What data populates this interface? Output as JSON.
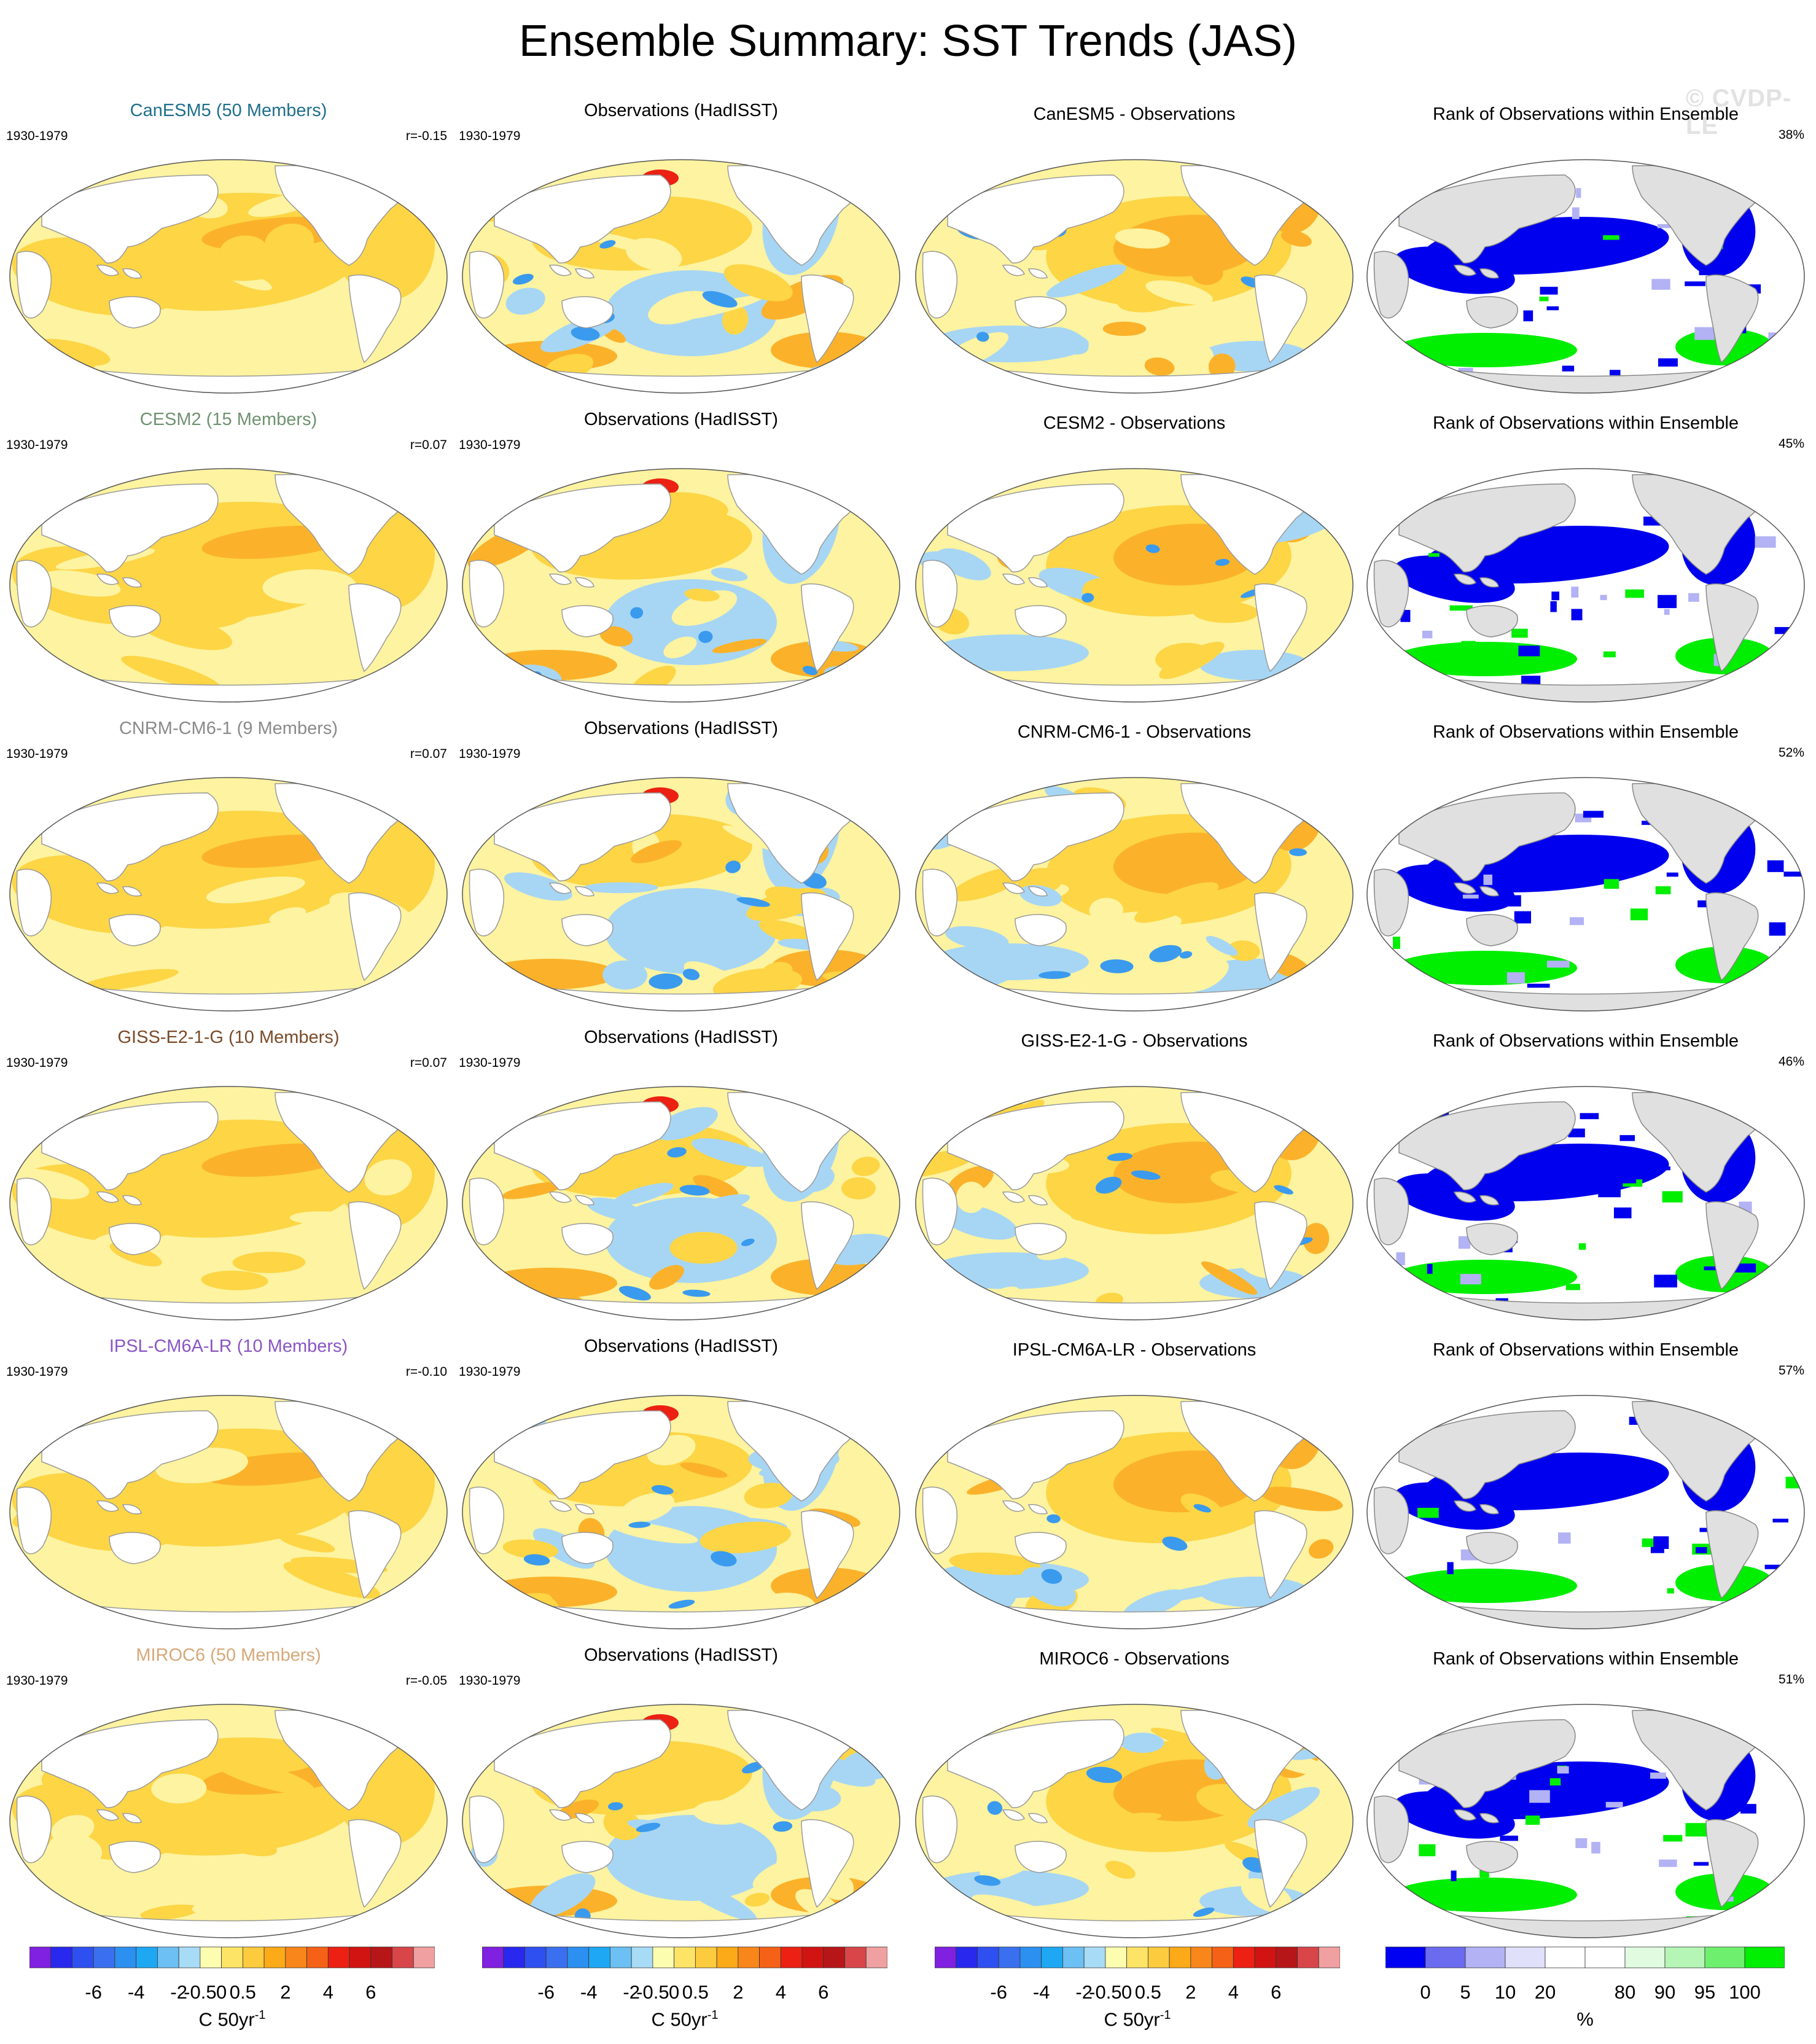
{
  "title": "Ensemble Summary: SST Trends (JAS)",
  "watermark": "© CVDP-LE",
  "period": "1930-1979",
  "obs_title": "Observations (HadISST)",
  "rank_title": "Rank of Observations within Ensemble",
  "rows": [
    {
      "model_title": "CanESM5 (50 Members)",
      "model_color": "#1f6f8b",
      "r": "r=-0.15",
      "diff_title": "CanESM5 - Observations",
      "rank_pct": "38%"
    },
    {
      "model_title": "CESM2 (15 Members)",
      "model_color": "#6f9270",
      "r": "r=0.07",
      "diff_title": "CESM2 - Observations",
      "rank_pct": "45%"
    },
    {
      "model_title": "CNRM-CM6-1 (9 Members)",
      "model_color": "#8a8a8a",
      "r": "r=0.07",
      "diff_title": "CNRM-CM6-1 - Observations",
      "rank_pct": "52%"
    },
    {
      "model_title": "GISS-E2-1-G (10 Members)",
      "model_color": "#7a4a28",
      "r": "r=0.07",
      "diff_title": "GISS-E2-1-G - Observations",
      "rank_pct": "46%"
    },
    {
      "model_title": "IPSL-CM6A-LR (10 Members)",
      "model_color": "#8a55c4",
      "r": "r=-0.10",
      "diff_title": "IPSL-CM6A-LR - Observations",
      "rank_pct": "57%"
    },
    {
      "model_title": "MIROC6 (50 Members)",
      "model_color": "#d6a879",
      "r": "r=-0.05",
      "diff_title": "MIROC6 - Observations",
      "rank_pct": "51%"
    }
  ],
  "sst_colorbar": {
    "colors": [
      "#8020e0",
      "#2828ee",
      "#2f50f0",
      "#3a70ef",
      "#2c90f0",
      "#1ea8f4",
      "#6cc0f3",
      "#a8dbf5",
      "#fdfdb0",
      "#fde467",
      "#fdcb3e",
      "#fdaa18",
      "#f9861a",
      "#f56116",
      "#ec2013",
      "#d11412",
      "#b71619",
      "#d8464a",
      "#f0a0a0"
    ],
    "ticks": [
      "-6",
      "-4",
      "-2",
      "-0.5",
      "0",
      "0.5",
      "2",
      "4",
      "6"
    ],
    "unit": "C 50yr",
    "unit_sup": "-1"
  },
  "rank_colorbar": {
    "colors": [
      "#0000f2",
      "#6b6bf0",
      "#b2b2f4",
      "#e0e0fa",
      "#ffffff",
      "#ffffff",
      "#e0fbe0",
      "#b5f5b5",
      "#6ef06e",
      "#00ee00"
    ],
    "ticks": [
      "0",
      "5",
      "10",
      "20",
      "80",
      "90",
      "95",
      "100"
    ],
    "unit": "%"
  },
  "map_colors": {
    "ocean_warm": "#fdd545",
    "ocean_light": "#fdf3a0",
    "ocean_orange": "#fbb22a",
    "ocean_blue": "#a7d6f4",
    "ocean_blue_deep": "#3a9aee",
    "land_model": "#ffffff",
    "land_rank": "#e0e0e0",
    "rank_blue": "#0000ee",
    "rank_green": "#00ee00",
    "coast": "#9a9a9a"
  }
}
